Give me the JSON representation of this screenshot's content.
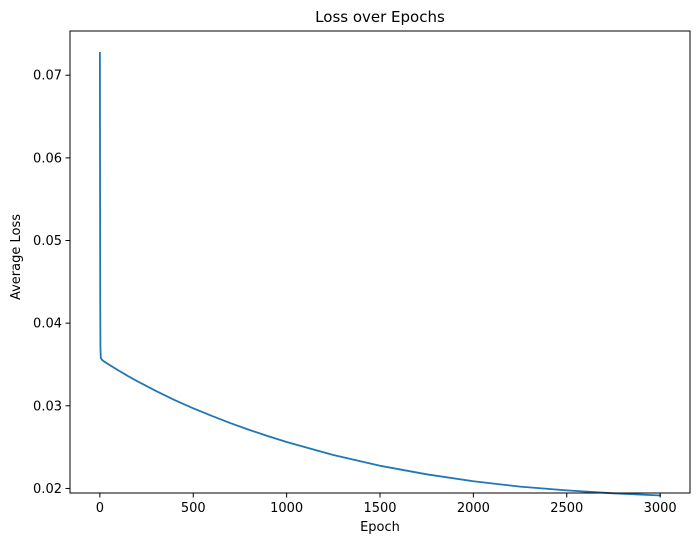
{
  "chart_data": {
    "type": "line",
    "title": "Loss over Epochs",
    "xlabel": "Epoch",
    "ylabel": "Average Loss",
    "xlim": [
      -160,
      3160
    ],
    "ylim": [
      0.01945,
      0.07535
    ],
    "grid": false,
    "legend": "none",
    "xticks": [
      0,
      500,
      1000,
      1500,
      2000,
      2500,
      3000
    ],
    "xtick_labels": [
      "0",
      "500",
      "1000",
      "1500",
      "2000",
      "2500",
      "3000"
    ],
    "yticks": [
      0.02,
      0.03,
      0.04,
      0.05,
      0.06,
      0.07
    ],
    "ytick_labels": [
      "0.02",
      "0.03",
      "0.04",
      "0.05",
      "0.06",
      "0.07"
    ],
    "series": [
      {
        "color": "#1f77b4",
        "x": [
          0,
          1,
          2,
          3,
          5,
          10,
          20,
          50,
          100,
          150,
          200,
          300,
          400,
          500,
          600,
          700,
          800,
          900,
          1000,
          1250,
          1500,
          1750,
          2000,
          2250,
          2500,
          2750,
          3000
        ],
        "y": [
          0.0727,
          0.055,
          0.042,
          0.037,
          0.0358,
          0.0356,
          0.0354,
          0.03497,
          0.03427,
          0.03361,
          0.03298,
          0.0318,
          0.0307,
          0.0297,
          0.02877,
          0.0279,
          0.02709,
          0.02633,
          0.02562,
          0.02405,
          0.02275,
          0.02171,
          0.02087,
          0.02022,
          0.01977,
          0.01941,
          0.01915
        ]
      }
    ]
  }
}
